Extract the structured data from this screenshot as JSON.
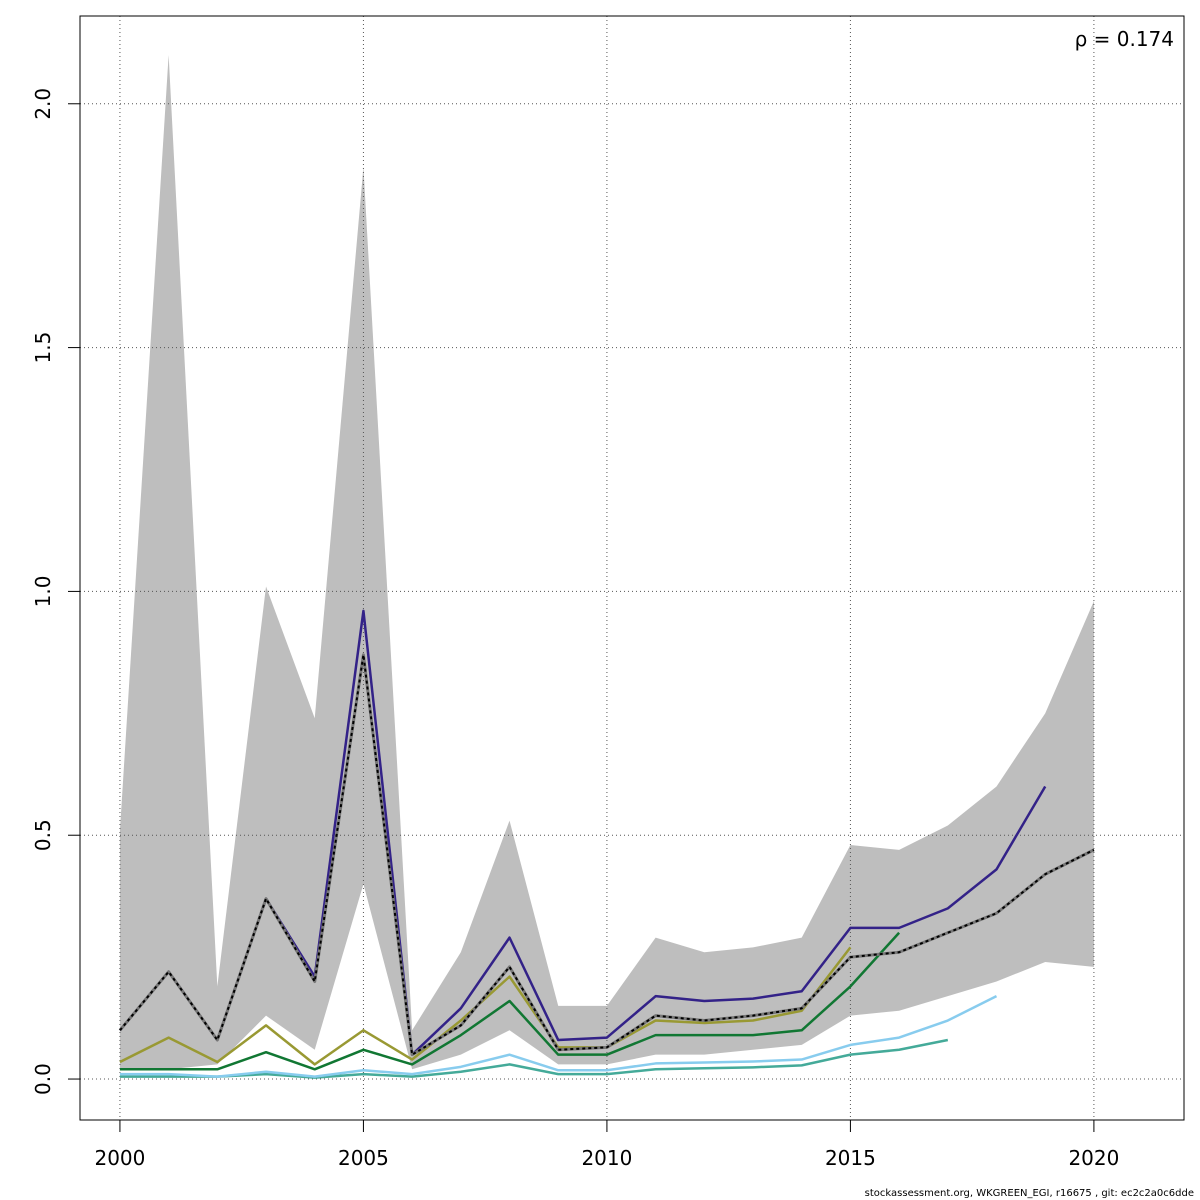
{
  "chart_data": {
    "type": "line",
    "annotation": "ρ = 0.174",
    "footer": "stockassessment.org, WKGREEN_EGI, r16675 , git: ec2c2a0c6dde",
    "x": [
      2000,
      2001,
      2002,
      2003,
      2004,
      2005,
      2006,
      2007,
      2008,
      2009,
      2010,
      2011,
      2012,
      2013,
      2014,
      2015,
      2016,
      2017,
      2018,
      2019,
      2020
    ],
    "band": {
      "color": "#bebebe",
      "upper": [
        0.51,
        2.1,
        0.19,
        1.01,
        0.74,
        1.87,
        0.1,
        0.26,
        0.53,
        0.15,
        0.15,
        0.29,
        0.26,
        0.27,
        0.29,
        0.48,
        0.47,
        0.52,
        0.6,
        0.75,
        0.98
      ],
      "lower": [
        0.02,
        0.02,
        0.03,
        0.13,
        0.06,
        0.4,
        0.02,
        0.05,
        0.1,
        0.03,
        0.03,
        0.05,
        0.05,
        0.06,
        0.07,
        0.13,
        0.14,
        0.17,
        0.2,
        0.24,
        0.23
      ]
    },
    "series": [
      {
        "color": "#44aa99",
        "values": [
          0.005,
          0.005,
          0.005,
          0.01,
          0.003,
          0.01,
          0.005,
          0.015,
          0.03,
          0.01,
          0.01,
          0.02,
          0.022,
          0.024,
          0.028,
          0.05,
          0.06,
          0.08,
          null,
          null,
          null
        ]
      },
      {
        "color": "#88ccee",
        "values": [
          0.01,
          0.01,
          0.005,
          0.015,
          0.005,
          0.018,
          0.01,
          0.025,
          0.05,
          0.018,
          0.018,
          0.032,
          0.034,
          0.036,
          0.04,
          0.07,
          0.085,
          0.12,
          0.17,
          null,
          null
        ]
      },
      {
        "color": "#999933",
        "values": [
          0.035,
          0.085,
          0.035,
          0.11,
          0.03,
          0.1,
          0.04,
          0.12,
          0.21,
          0.065,
          0.065,
          0.12,
          0.115,
          0.12,
          0.14,
          0.27,
          null,
          null,
          null,
          null,
          null
        ]
      },
      {
        "color": "#117733",
        "values": [
          0.02,
          0.02,
          0.02,
          0.055,
          0.02,
          0.06,
          0.03,
          0.09,
          0.16,
          0.05,
          0.05,
          0.09,
          0.09,
          0.09,
          0.1,
          0.19,
          0.3,
          null,
          null,
          null,
          null
        ]
      },
      {
        "color": "#332288",
        "values": [
          0.1,
          0.22,
          0.08,
          0.37,
          0.21,
          0.96,
          0.05,
          0.145,
          0.29,
          0.08,
          0.085,
          0.17,
          0.16,
          0.165,
          0.18,
          0.31,
          0.31,
          0.35,
          0.43,
          0.6,
          null
        ]
      },
      {
        "color": "#000000",
        "dashed": true,
        "values": [
          0.1,
          0.22,
          0.08,
          0.37,
          0.2,
          0.87,
          0.05,
          0.11,
          0.23,
          0.06,
          0.065,
          0.13,
          0.12,
          0.13,
          0.145,
          0.25,
          0.26,
          0.3,
          0.34,
          0.42,
          0.47
        ]
      }
    ],
    "xlim": [
      1999.18,
      2021.85
    ],
    "ylim": [
      -0.084,
      2.18
    ],
    "xticks": [
      2000,
      2005,
      2010,
      2015,
      2020
    ],
    "yticks": [
      {
        "value": 0,
        "label": "0.0"
      },
      0.5,
      {
        "value": 1,
        "label": "1.0"
      },
      1.5,
      {
        "value": 2,
        "label": "2.0"
      }
    ],
    "grid": true
  }
}
